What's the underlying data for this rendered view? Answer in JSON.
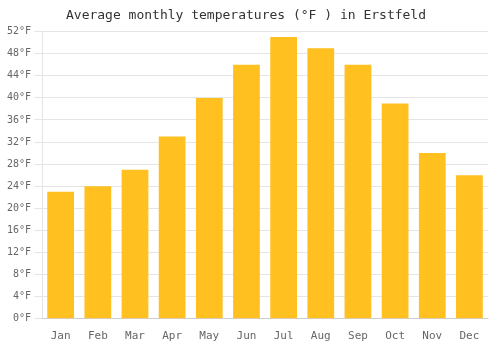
{
  "chart_data": {
    "type": "bar",
    "title": "Average monthly temperatures (°F ) in Erstfeld",
    "categories": [
      "Jan",
      "Feb",
      "Mar",
      "Apr",
      "May",
      "Jun",
      "Jul",
      "Aug",
      "Sep",
      "Oct",
      "Nov",
      "Dec"
    ],
    "values": [
      23.0,
      24.0,
      27.0,
      33.0,
      40.0,
      46.0,
      51.0,
      49.0,
      46.0,
      39.0,
      30.0,
      26.0
    ],
    "color": "#FFC020",
    "ylim": [
      0,
      52
    ],
    "yticks": [
      {
        "value": 0,
        "label": "0°F"
      },
      {
        "value": 4,
        "label": "4°F"
      },
      {
        "value": 8,
        "label": "8°F"
      },
      {
        "value": 12,
        "label": "12°F"
      },
      {
        "value": 16,
        "label": "16°F"
      },
      {
        "value": 20,
        "label": "20°F"
      },
      {
        "value": 24,
        "label": "24°F"
      },
      {
        "value": 28,
        "label": "28°F"
      },
      {
        "value": 32,
        "label": "32°F"
      },
      {
        "value": 36,
        "label": "36°F"
      },
      {
        "value": 40,
        "label": "40°F"
      },
      {
        "value": 44,
        "label": "44°F"
      },
      {
        "value": 48,
        "label": "48°F"
      },
      {
        "value": 52,
        "label": "52°F"
      }
    ],
    "grid": true
  }
}
